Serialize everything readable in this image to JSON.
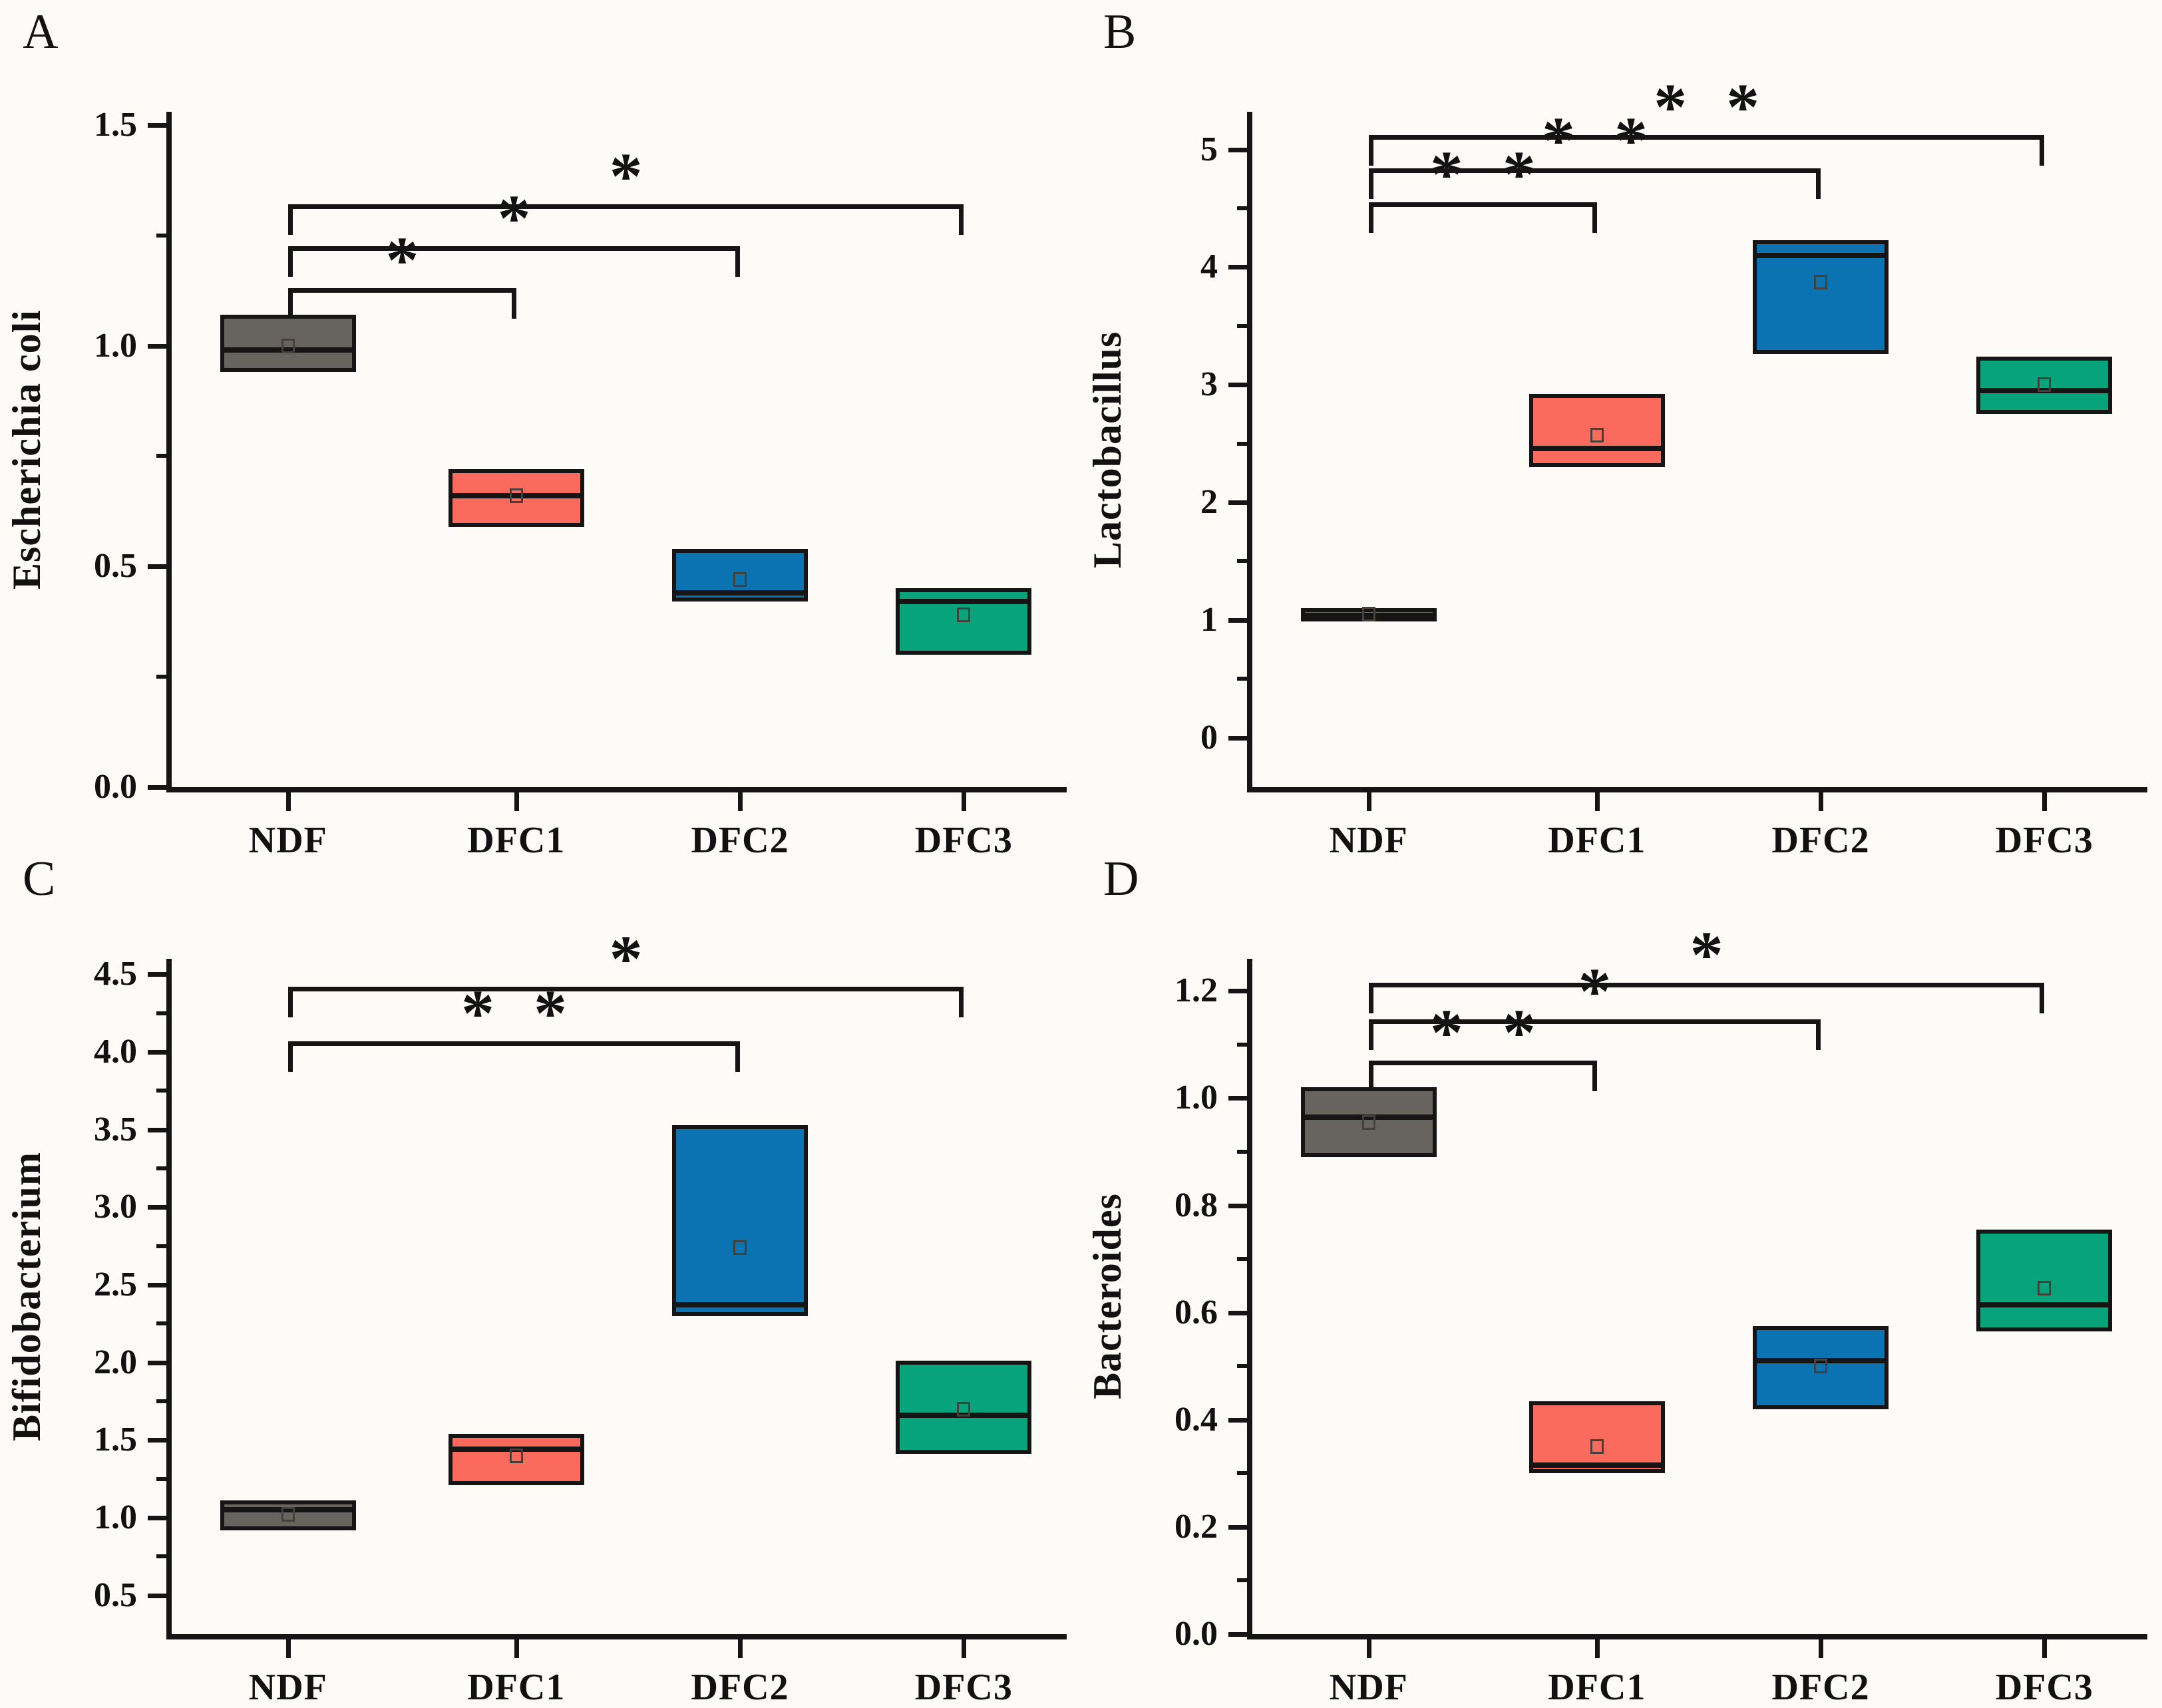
{
  "figure": {
    "background_color": "#fcfbf7",
    "axis_color": "#151515",
    "mean_marker": "open-square",
    "groups": [
      "NDF",
      "DFC1",
      "DFC2",
      "DFC3"
    ],
    "group_colors": {
      "NDF": "#676460",
      "DFC1": "#fa6b5e",
      "DFC2": "#0b73b2",
      "DFC3": "#07a37b"
    }
  },
  "chart_data": [
    {
      "type": "box",
      "letter": "A",
      "ylabel": "Escherichia coli",
      "xlabel": "",
      "ylim": [
        0,
        1.53
      ],
      "grid": false,
      "legend": "none",
      "yticks": [
        {
          "v": 0.0,
          "label": "0.0"
        },
        {
          "v": 0.5,
          "label": "0.5"
        },
        {
          "v": 1.0,
          "label": "1.0"
        },
        {
          "v": 1.5,
          "label": "1.5"
        }
      ],
      "y_minor_ticks": [
        0.25,
        0.75,
        1.25
      ],
      "categories": [
        "NDF",
        "DFC1",
        "DFC2",
        "DFC3"
      ],
      "boxes": [
        {
          "category": "NDF",
          "fill": "#676460",
          "q1": 0.94,
          "median": 0.99,
          "q3": 1.07,
          "mean": 1.0
        },
        {
          "category": "DFC1",
          "fill": "#fa6b5e",
          "q1": 0.59,
          "median": 0.66,
          "q3": 0.72,
          "mean": 0.66
        },
        {
          "category": "DFC2",
          "fill": "#0b73b2",
          "q1": 0.42,
          "median": 0.44,
          "q3": 0.54,
          "mean": 0.47
        },
        {
          "category": "DFC3",
          "fill": "#07a37b",
          "q1": 0.3,
          "median": 0.42,
          "q3": 0.45,
          "mean": 0.39
        }
      ],
      "brackets": [
        {
          "from": "NDF",
          "to": "DFC1",
          "y": 1.13,
          "stars": "*"
        },
        {
          "from": "NDF",
          "to": "DFC2",
          "y": 1.225,
          "stars": "*"
        },
        {
          "from": "NDF",
          "to": "DFC3",
          "y": 1.32,
          "stars": "*"
        }
      ]
    },
    {
      "type": "box",
      "letter": "B",
      "ylabel": "Lactobacillus",
      "xlabel": "",
      "ylim": [
        -0.42,
        5.32
      ],
      "grid": false,
      "legend": "none",
      "yticks": [
        {
          "v": 0,
          "label": "0"
        },
        {
          "v": 1,
          "label": "1"
        },
        {
          "v": 2,
          "label": "2"
        },
        {
          "v": 3,
          "label": "3"
        },
        {
          "v": 4,
          "label": "4"
        },
        {
          "v": 5,
          "label": "5"
        }
      ],
      "y_minor_ticks": [
        0.5,
        1.5,
        2.5,
        3.5,
        4.5
      ],
      "categories": [
        "NDF",
        "DFC1",
        "DFC2",
        "DFC3"
      ],
      "boxes": [
        {
          "category": "NDF",
          "fill": "#676460",
          "q1": 0.99,
          "median": 1.04,
          "q3": 1.1,
          "mean": 1.05
        },
        {
          "category": "DFC1",
          "fill": "#fa6b5e",
          "q1": 2.3,
          "median": 2.46,
          "q3": 2.92,
          "mean": 2.57
        },
        {
          "category": "DFC2",
          "fill": "#0b73b2",
          "q1": 3.26,
          "median": 4.1,
          "q3": 4.23,
          "mean": 3.87
        },
        {
          "category": "DFC3",
          "fill": "#07a37b",
          "q1": 2.75,
          "median": 2.95,
          "q3": 3.24,
          "mean": 3.0
        }
      ],
      "brackets": [
        {
          "from": "NDF",
          "to": "DFC1",
          "y": 4.55,
          "stars": "* *"
        },
        {
          "from": "NDF",
          "to": "DFC2",
          "y": 4.84,
          "stars": "* *"
        },
        {
          "from": "NDF",
          "to": "DFC3",
          "y": 5.12,
          "stars": "* *"
        }
      ]
    },
    {
      "type": "box",
      "letter": "C",
      "ylabel": "Bifidobacterium",
      "xlabel": "",
      "ylim": [
        0.25,
        4.6
      ],
      "grid": false,
      "legend": "none",
      "yticks": [
        {
          "v": 0.5,
          "label": "0.5"
        },
        {
          "v": 1.0,
          "label": "1.0"
        },
        {
          "v": 1.5,
          "label": "1.5"
        },
        {
          "v": 2.0,
          "label": "2.0"
        },
        {
          "v": 2.5,
          "label": "2.5"
        },
        {
          "v": 3.0,
          "label": "3.0"
        },
        {
          "v": 3.5,
          "label": "3.5"
        },
        {
          "v": 4.0,
          "label": "4.0"
        },
        {
          "v": 4.5,
          "label": "4.5"
        }
      ],
      "y_minor_ticks": [
        0.75,
        1.25,
        1.75,
        2.25,
        2.75,
        3.25,
        3.75,
        4.25
      ],
      "categories": [
        "NDF",
        "DFC1",
        "DFC2",
        "DFC3"
      ],
      "boxes": [
        {
          "category": "NDF",
          "fill": "#676460",
          "q1": 0.92,
          "median": 1.05,
          "q3": 1.11,
          "mean": 1.02
        },
        {
          "category": "DFC1",
          "fill": "#fa6b5e",
          "q1": 1.21,
          "median": 1.44,
          "q3": 1.54,
          "mean": 1.4
        },
        {
          "category": "DFC2",
          "fill": "#0b73b2",
          "q1": 2.3,
          "median": 2.37,
          "q3": 3.53,
          "mean": 2.74
        },
        {
          "category": "DFC3",
          "fill": "#07a37b",
          "q1": 1.41,
          "median": 1.66,
          "q3": 2.01,
          "mean": 1.7
        }
      ],
      "brackets": [
        {
          "from": "NDF",
          "to": "DFC2",
          "y": 4.07,
          "stars": "* *"
        },
        {
          "from": "NDF",
          "to": "DFC3",
          "y": 4.42,
          "stars": "*"
        }
      ]
    },
    {
      "type": "box",
      "letter": "D",
      "ylabel": "Bacteroides",
      "xlabel": "",
      "ylim": [
        0,
        1.26
      ],
      "grid": false,
      "legend": "none",
      "yticks": [
        {
          "v": 0.0,
          "label": "0.0"
        },
        {
          "v": 0.2,
          "label": "0.2"
        },
        {
          "v": 0.4,
          "label": "0.4"
        },
        {
          "v": 0.6,
          "label": "0.6"
        },
        {
          "v": 0.8,
          "label": "0.8"
        },
        {
          "v": 1.0,
          "label": "1.0"
        },
        {
          "v": 1.2,
          "label": "1.2"
        }
      ],
      "y_minor_ticks": [
        0.1,
        0.3,
        0.5,
        0.7,
        0.9,
        1.1
      ],
      "categories": [
        "NDF",
        "DFC1",
        "DFC2",
        "DFC3"
      ],
      "boxes": [
        {
          "category": "NDF",
          "fill": "#676460",
          "q1": 0.89,
          "median": 0.965,
          "q3": 1.02,
          "mean": 0.955
        },
        {
          "category": "DFC1",
          "fill": "#fa6b5e",
          "q1": 0.3,
          "median": 0.315,
          "q3": 0.435,
          "mean": 0.35
        },
        {
          "category": "DFC2",
          "fill": "#0b73b2",
          "q1": 0.42,
          "median": 0.51,
          "q3": 0.575,
          "mean": 0.5
        },
        {
          "category": "DFC3",
          "fill": "#07a37b",
          "q1": 0.565,
          "median": 0.615,
          "q3": 0.755,
          "mean": 0.645
        }
      ],
      "brackets": [
        {
          "from": "NDF",
          "to": "DFC1",
          "y": 1.07,
          "stars": "* *"
        },
        {
          "from": "NDF",
          "to": "DFC2",
          "y": 1.147,
          "stars": "*"
        },
        {
          "from": "NDF",
          "to": "DFC3",
          "y": 1.215,
          "stars": "*"
        }
      ]
    }
  ]
}
